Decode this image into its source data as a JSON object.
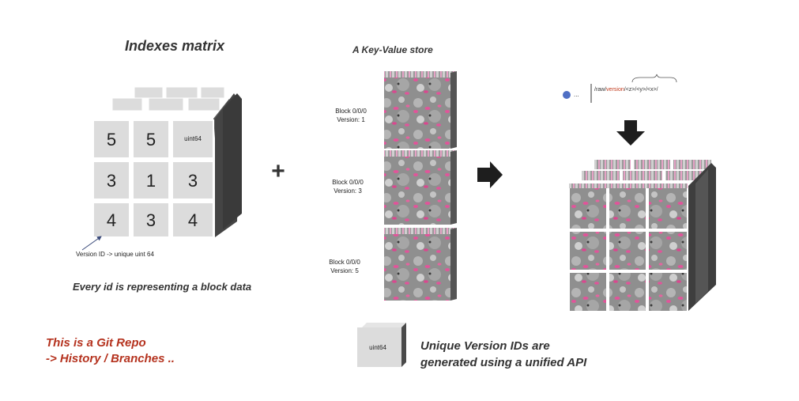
{
  "matrix": {
    "title": "Indexes matrix",
    "front_cells": [
      "5",
      "5",
      "uint64",
      "3",
      "1",
      "3",
      "4",
      "3",
      "4"
    ],
    "annotation": "Version ID -> unique uint 64",
    "caption": "Every id is representing a block data"
  },
  "plus_sign": "+",
  "kv_store": {
    "title": "A Key-Value store",
    "blocks": [
      {
        "line1": "Block 0/0/0",
        "line2": "Version: 1"
      },
      {
        "line1": "Block 0/0/0",
        "line2": "Version: 3"
      },
      {
        "line1": "Block 0/0/0",
        "line2": "Version: 5"
      }
    ]
  },
  "api_path": {
    "prefix": "/raw/",
    "version": "version",
    "rest": "/<z>/<y>/<x>/",
    "ellipsis": "..."
  },
  "git_note": {
    "line1": "This is a Git Repo",
    "line2": "-> History / Branches .."
  },
  "legend_cube_label": "uint64",
  "unique_ids_text": {
    "line1": "Unique Version IDs are",
    "line2": "generated using a unified API"
  },
  "colors": {
    "pink": "#e0559a",
    "cube_face": "#dcdcdc",
    "cube_side": "#4a4a4a",
    "red_text": "#b5331f",
    "link_red": "#c0391b",
    "dot_blue": "#4f6fc4"
  }
}
